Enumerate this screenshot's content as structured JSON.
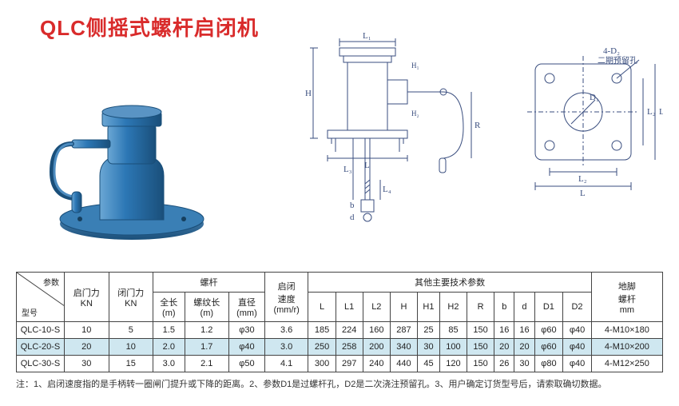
{
  "title": "QLC侧摇式螺杆启闭机",
  "title_color": "#d92b2b",
  "photo": {
    "body_color": "#2c77b5",
    "highlight_color": "#6ba7d4",
    "shadow_color": "#1a4f7a",
    "base_color": "#2e6fa5"
  },
  "diagram": {
    "line_color": "#3a4e7f",
    "label_color": "#3a4e7f",
    "labels": {
      "L": "L",
      "L1": "L₁",
      "L2": "L₂",
      "L3": "L₃",
      "L4": "L₄",
      "H": "H",
      "H1": "H₁",
      "H2": "H₂",
      "R": "R",
      "b": "b",
      "d": "d",
      "D1": "D₁",
      "four_D2": "4-D₂",
      "reserve_hole": "二期预留孔"
    }
  },
  "table": {
    "diag_param": "参数",
    "diag_model": "型号",
    "group_headers": {
      "open_force": "启门力\nKN",
      "close_force": "闭门力\nKN",
      "screw": "螺杆",
      "speed": "启闭\n速度\n(mm/r)",
      "other": "其他主要技术参数",
      "anchor": "地脚\n螺杆\nmm"
    },
    "screw_sub": {
      "total_len": "全长\n(m)",
      "thread_len": "螺纹长\n(m)",
      "diameter": "直径\n(mm)"
    },
    "other_sub": [
      "L",
      "L1",
      "L2",
      "H",
      "H1",
      "H2",
      "R",
      "b",
      "d",
      "D1",
      "D2"
    ],
    "rows": [
      {
        "model": "QLC-10-S",
        "open": "10",
        "close": "5",
        "tlen": "1.5",
        "thlen": "1.2",
        "dia": "φ30",
        "speed": "3.6",
        "L": "185",
        "L1": "224",
        "L2": "160",
        "H": "287",
        "H1": "25",
        "H2": "85",
        "R": "150",
        "b": "16",
        "d": "16",
        "D1": "φ60",
        "D2": "φ40",
        "anchor": "4-M10×180",
        "highlight": false
      },
      {
        "model": "QLC-20-S",
        "open": "20",
        "close": "10",
        "tlen": "2.0",
        "thlen": "1.7",
        "dia": "φ40",
        "speed": "3.0",
        "L": "250",
        "L1": "258",
        "L2": "200",
        "H": "340",
        "H1": "30",
        "H2": "100",
        "R": "150",
        "b": "20",
        "d": "20",
        "D1": "φ60",
        "D2": "φ40",
        "anchor": "4-M10×200",
        "highlight": true
      },
      {
        "model": "QLC-30-S",
        "open": "30",
        "close": "15",
        "tlen": "3.0",
        "thlen": "2.1",
        "dia": "φ50",
        "speed": "4.1",
        "L": "300",
        "L1": "297",
        "L2": "240",
        "H": "440",
        "H1": "45",
        "H2": "120",
        "R": "150",
        "b": "26",
        "d": "30",
        "D1": "φ80",
        "D2": "φ40",
        "anchor": "4-M12×250",
        "highlight": false
      }
    ]
  },
  "notes": "注：1、启闭速度指的是手柄转一圈闸门提升或下降的距离。2、参数D1是过螺杆孔，D2是二次浇注预留孔。3、用户确定订货型号后，请索取确切数据。"
}
